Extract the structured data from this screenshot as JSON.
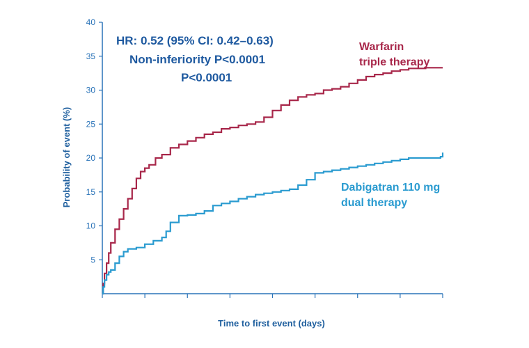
{
  "chart_data": {
    "type": "line",
    "xlabel": "Time to first event (days)",
    "ylabel": "Probability of event (%)",
    "ylim": [
      0,
      40
    ],
    "y_ticks": [
      "5",
      "10",
      "15",
      "20",
      "25",
      "30",
      "35",
      "40"
    ],
    "y_tick_values": [
      5,
      10,
      15,
      20,
      25,
      30,
      35,
      40
    ],
    "x_tick_count": 9,
    "annotations": [
      "HR: 0.52 (95% CI: 0.42–0.63)",
      "Non-inferiority  P<0.0001",
      "P<0.0001"
    ],
    "series": [
      {
        "name": "Warfarin triple therapy",
        "label_lines": [
          "Warfarin",
          "triple therapy"
        ],
        "color": "#a8274a",
        "x": [
          0,
          0.02,
          0.05,
          0.1,
          0.15,
          0.2,
          0.3,
          0.4,
          0.5,
          0.6,
          0.7,
          0.8,
          0.9,
          1.0,
          1.1,
          1.25,
          1.4,
          1.6,
          1.8,
          2.0,
          2.2,
          2.4,
          2.6,
          2.8,
          3.0,
          3.2,
          3.4,
          3.6,
          3.8,
          4.0,
          4.2,
          4.4,
          4.6,
          4.8,
          5.0,
          5.2,
          5.4,
          5.6,
          5.8,
          6.0,
          6.2,
          6.4,
          6.6,
          6.8,
          7.0,
          7.2,
          7.4,
          7.6,
          7.8,
          8.0
        ],
        "y": [
          0,
          1.5,
          3,
          4.5,
          6,
          7.5,
          9.5,
          11,
          12.5,
          14,
          15.5,
          17,
          18,
          18.5,
          19,
          20,
          20.5,
          21.5,
          22,
          22.5,
          23,
          23.5,
          23.8,
          24.3,
          24.5,
          24.8,
          25,
          25.3,
          26,
          27,
          27.8,
          28.5,
          29,
          29.3,
          29.5,
          30,
          30.2,
          30.5,
          31,
          31.5,
          32,
          32.3,
          32.5,
          32.8,
          33,
          33.2,
          33.2,
          33.3,
          33.3,
          33.3
        ]
      },
      {
        "name": "Dabigatran 110 mg dual therapy",
        "label_lines": [
          "Dabigatran 110 mg",
          "dual therapy"
        ],
        "color": "#2a9bd0",
        "x": [
          0,
          0.02,
          0.05,
          0.1,
          0.15,
          0.2,
          0.3,
          0.4,
          0.5,
          0.6,
          0.8,
          1.0,
          1.2,
          1.4,
          1.5,
          1.6,
          1.8,
          2.0,
          2.2,
          2.4,
          2.6,
          2.8,
          3.0,
          3.2,
          3.4,
          3.6,
          3.8,
          4.0,
          4.2,
          4.4,
          4.6,
          4.8,
          5.0,
          5.2,
          5.4,
          5.6,
          5.8,
          6.0,
          6.2,
          6.4,
          6.6,
          6.8,
          7.0,
          7.2,
          7.4,
          7.6,
          7.8,
          7.95,
          8.0
        ],
        "y": [
          0,
          1,
          2,
          2.8,
          3.2,
          3.5,
          4.5,
          5.5,
          6.2,
          6.6,
          6.8,
          7.3,
          7.8,
          8.3,
          9.2,
          10.5,
          11.5,
          11.6,
          11.8,
          12.2,
          13,
          13.3,
          13.6,
          14,
          14.3,
          14.6,
          14.8,
          15,
          15.2,
          15.4,
          16,
          16.8,
          17.8,
          18,
          18.2,
          18.4,
          18.6,
          18.8,
          19,
          19.2,
          19.4,
          19.6,
          19.8,
          20,
          20,
          20,
          20,
          20.2,
          20.8
        ]
      }
    ]
  }
}
